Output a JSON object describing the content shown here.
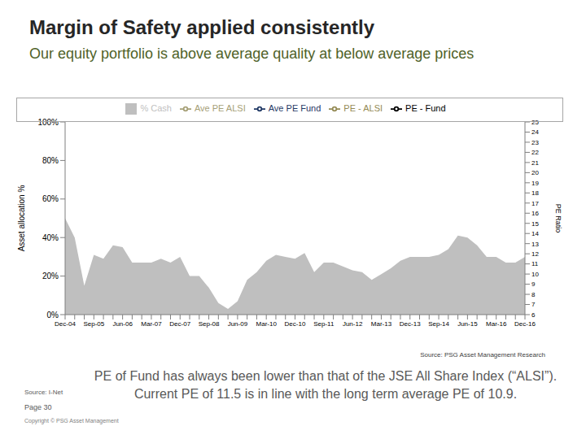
{
  "title": "Margin of Safety applied consistently",
  "subtitle": "Our equity portfolio is above average quality at below average prices",
  "chart_data": {
    "type": "area",
    "y_label": "Asset allocation %",
    "y2_label": "PE Ratio",
    "categories": [
      "Dec-04",
      null,
      null,
      "Sep-05",
      null,
      null,
      "Jun-06",
      null,
      null,
      "Mar-07",
      null,
      null,
      "Dec-07",
      null,
      null,
      "Sep-08",
      null,
      null,
      "Jun-09",
      null,
      null,
      "Mar-10",
      null,
      null,
      "Dec-10",
      null,
      null,
      "Sep-11",
      null,
      null,
      "Jun-12",
      null,
      null,
      "Mar-13",
      null,
      null,
      "Dec-13",
      null,
      null,
      "Sep-14",
      null,
      null,
      "Jun-15",
      null,
      null,
      "Mar-16",
      null,
      null,
      "Dec-16"
    ],
    "series": [
      {
        "name": "% Cash",
        "color": "#bfbfbf",
        "type": "area",
        "values": [
          50,
          40,
          15,
          31,
          29,
          36,
          35,
          27,
          27,
          27,
          29,
          27,
          30,
          20,
          20,
          14,
          6,
          3,
          7,
          18,
          22,
          28,
          31,
          30,
          29,
          32,
          22,
          27,
          27,
          25,
          23,
          22,
          18,
          21,
          24,
          28,
          30,
          30,
          30,
          31,
          34,
          41,
          40,
          36,
          30,
          30,
          27,
          27,
          30
        ]
      },
      {
        "name": "PE - Fund",
        "color": "#000000",
        "type": "line",
        "axis": "y2",
        "values": [
          null,
          null,
          null,
          null,
          null,
          null,
          null,
          null,
          null,
          null,
          null,
          null,
          null,
          null,
          null,
          null,
          null,
          null,
          null,
          null,
          null,
          null,
          null,
          null,
          null,
          null,
          null,
          null,
          null,
          null,
          null,
          null,
          null,
          null,
          null,
          null,
          null,
          null,
          null,
          null,
          null,
          null,
          null,
          null,
          null,
          null,
          null,
          null,
          null
        ]
      },
      {
        "name": "PE - ALSI",
        "color": "#948a54",
        "type": "line",
        "axis": "y2",
        "values": [
          null,
          null,
          null,
          null,
          null,
          null,
          null,
          null,
          null,
          null,
          null,
          null,
          null,
          null,
          null,
          null,
          null,
          null,
          null,
          null,
          null,
          null,
          null,
          null,
          null,
          null,
          null,
          null,
          null,
          null,
          null,
          null,
          null,
          null,
          null,
          null,
          null,
          null,
          null,
          null,
          null,
          null,
          null,
          null,
          null,
          null,
          null,
          null,
          null
        ]
      },
      {
        "name": "Ave PE Fund",
        "color": "#1f3864",
        "type": "line",
        "axis": "y2",
        "values": [
          null,
          null,
          null,
          null,
          null,
          null,
          null,
          null,
          null,
          null,
          null,
          null,
          null,
          null,
          null,
          null,
          null,
          null,
          null,
          null,
          null,
          null,
          null,
          null,
          null,
          null,
          null,
          null,
          null,
          null,
          null,
          null,
          null,
          null,
          null,
          null,
          null,
          null,
          null,
          null,
          null,
          null,
          null,
          null,
          null,
          null,
          null,
          null,
          null
        ]
      },
      {
        "name": "Ave PE ALSI",
        "color": "#a6a077",
        "type": "line",
        "axis": "y2",
        "values": [
          null,
          null,
          null,
          null,
          null,
          null,
          null,
          null,
          null,
          null,
          null,
          null,
          null,
          null,
          null,
          null,
          null,
          null,
          null,
          null,
          null,
          null,
          null,
          null,
          null,
          null,
          null,
          null,
          null,
          null,
          null,
          null,
          null,
          null,
          null,
          null,
          null,
          null,
          null,
          null,
          null,
          null,
          null,
          null,
          null,
          null,
          null,
          null,
          null
        ]
      }
    ],
    "ylim": [
      0,
      100
    ],
    "yticks": [
      {
        "value": 0,
        "label": "0%"
      },
      {
        "value": 20,
        "label": "20%"
      },
      {
        "value": 40,
        "label": "40%"
      },
      {
        "value": 60,
        "label": "60%"
      },
      {
        "value": 80,
        "label": "80%"
      },
      {
        "value": 100,
        "label": "100%"
      }
    ],
    "y2lim": [
      6,
      25
    ],
    "y2ticks": [
      6,
      7,
      8,
      9,
      10,
      11,
      12,
      13,
      14,
      15,
      16,
      17,
      18,
      19,
      20,
      21,
      22,
      23,
      24,
      25
    ],
    "grid": false,
    "legend": "top"
  },
  "source": "Source: PSG Asset Management Research",
  "footnote": "PE of Fund has always been lower than that of the JSE All Share Index (“ALSI”). Current PE of 11.5 is in line with the long term average PE of 10.9.",
  "source_note": "Source: I-Net",
  "page": "Page 30",
  "copyright": "Copyright © PSG Asset Management"
}
